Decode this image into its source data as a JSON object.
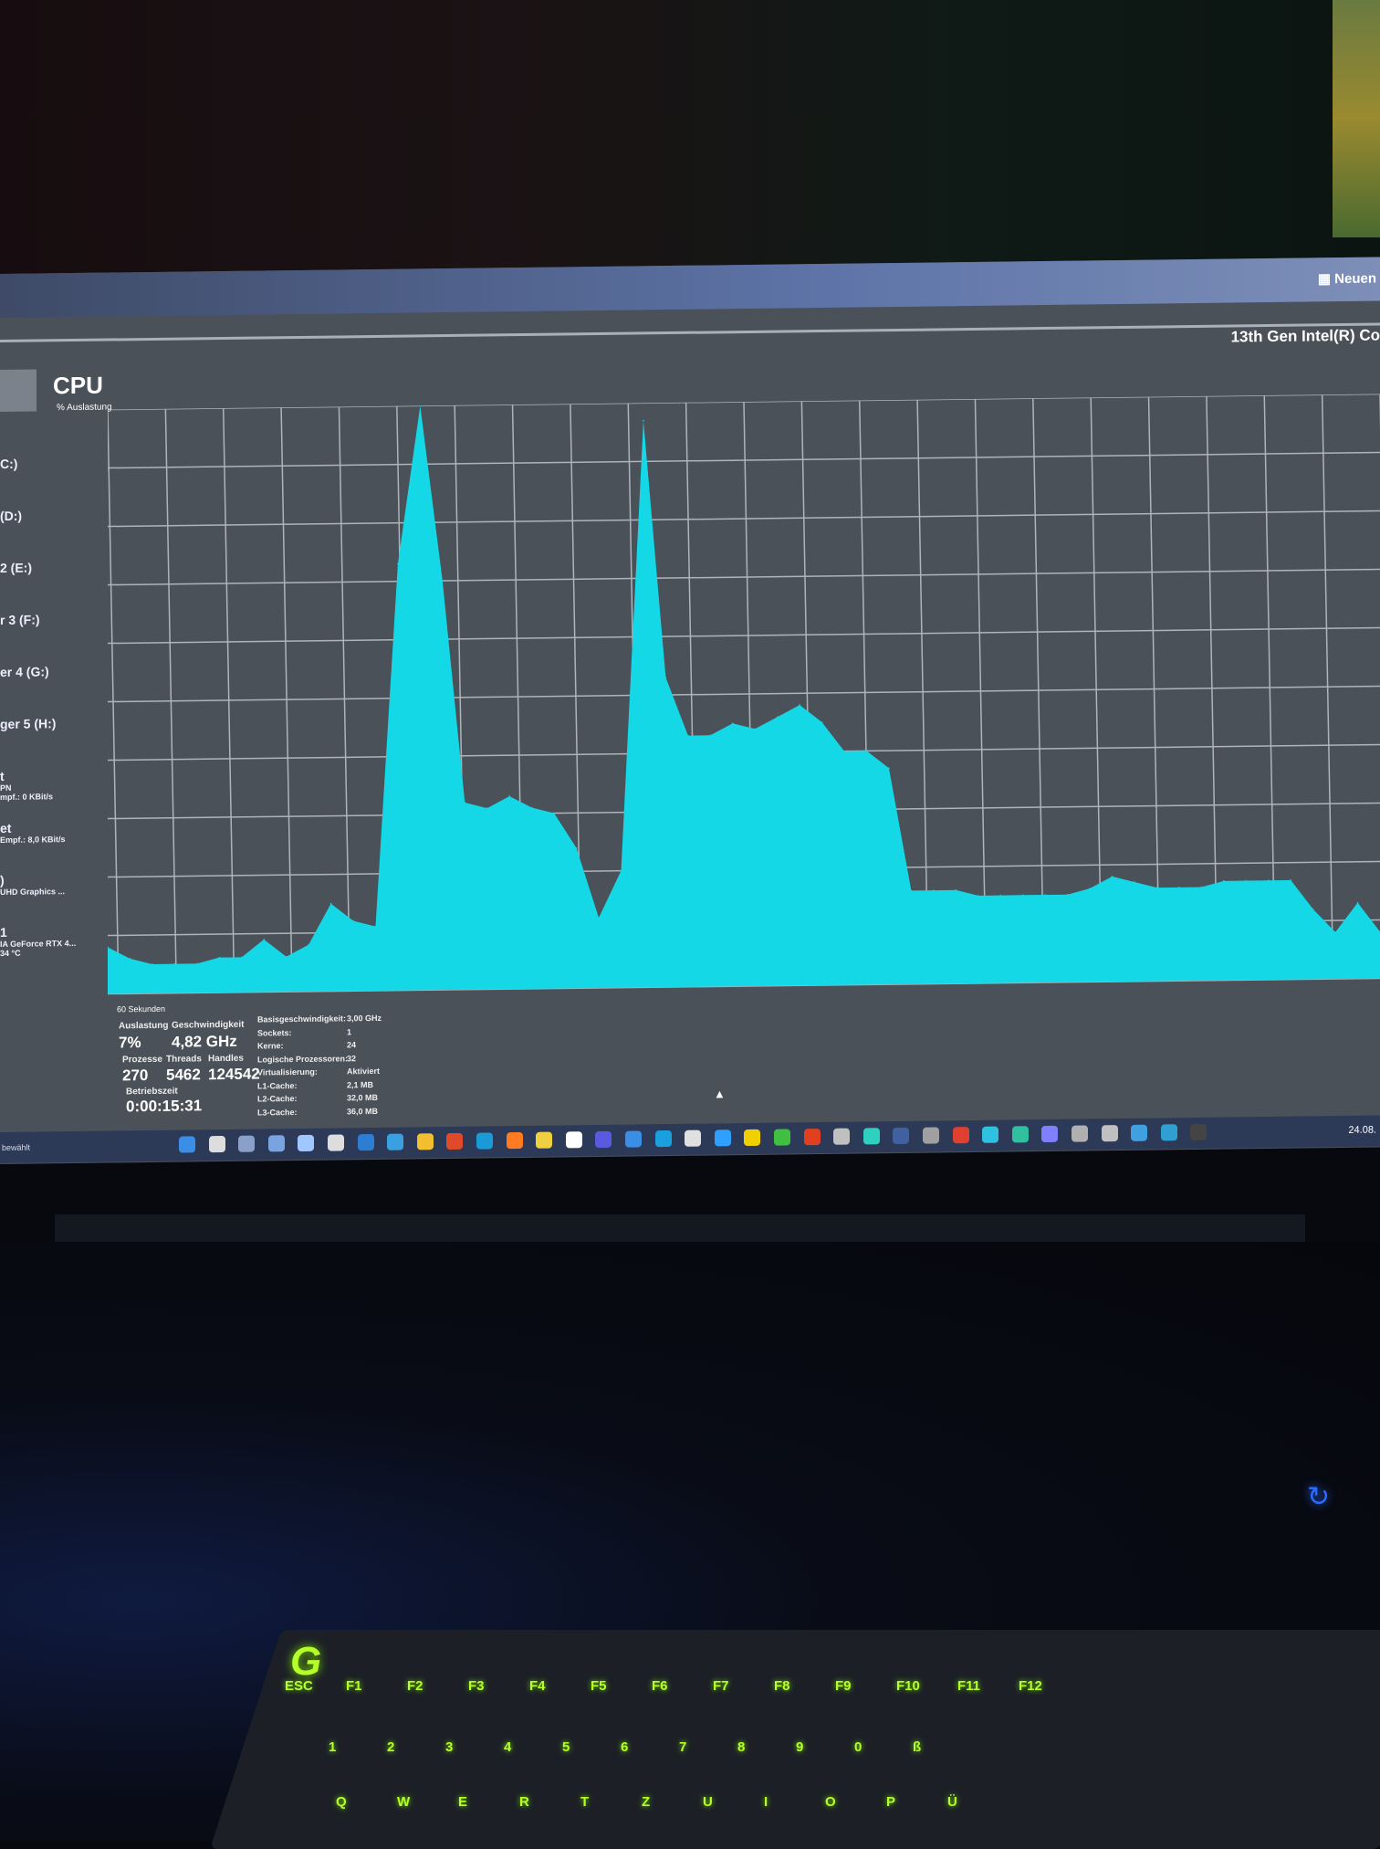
{
  "window": {
    "new_task_label": "Neuen",
    "cpu_model": "13th Gen Intel(R) Co",
    "title": "CPU",
    "subtitle": "% Auslastung",
    "time_window": "60 Sekunden",
    "status_left": "bewählt"
  },
  "sidebar": {
    "items": [
      {
        "label": "C:)",
        "sub": []
      },
      {
        "label": "(D:)",
        "sub": []
      },
      {
        "label": "2 (E:)",
        "sub": []
      },
      {
        "label": "r 3 (F:)",
        "sub": []
      },
      {
        "label": "er 4 (G:)",
        "sub": []
      },
      {
        "label": "ger 5 (H:)",
        "sub": []
      },
      {
        "label": "t",
        "sub": [
          "PN",
          "mpf.: 0 KBit/s"
        ]
      },
      {
        "label": "et",
        "sub": [
          "Empf.: 8,0 KBit/s"
        ]
      },
      {
        "label": ")",
        "sub": [
          "UHD Graphics ..."
        ]
      },
      {
        "label": "1",
        "sub": [
          "IA GeForce RTX 4...",
          "34 °C"
        ]
      }
    ]
  },
  "stats": {
    "utilization": {
      "label": "Auslastung",
      "value": "7%"
    },
    "speed": {
      "label": "Geschwindigkeit",
      "value": "4,82 GHz"
    },
    "processes": {
      "label": "Prozesse",
      "value": "270"
    },
    "threads": {
      "label": "Threads",
      "value": "5462"
    },
    "handles": {
      "label": "Handles",
      "value": "124542"
    },
    "uptime": {
      "label": "Betriebszeit",
      "value": "0:00:15:31"
    },
    "specs": [
      {
        "key": "Basisgeschwindigkeit:",
        "value": "3,00 GHz"
      },
      {
        "key": "Sockets:",
        "value": "1"
      },
      {
        "key": "Kerne:",
        "value": "24"
      },
      {
        "key": "Logische Prozessoren:",
        "value": "32"
      },
      {
        "key": "Virtualisierung:",
        "value": "Aktiviert"
      },
      {
        "key": "L1-Cache:",
        "value": "2,1 MB"
      },
      {
        "key": "L2-Cache:",
        "value": "32,0 MB"
      },
      {
        "key": "L3-Cache:",
        "value": "36,0 MB"
      }
    ]
  },
  "taskbar": {
    "clock": "24.08.",
    "icon_colors": [
      "#3a8ee6",
      "#dddddd",
      "#8aa0c8",
      "#7aa4e0",
      "#a0c8ff",
      "#dddddd",
      "#2d7dd2",
      "#3aa0e0",
      "#f0c030",
      "#e04a2a",
      "#1a9ad6",
      "#ff7a20",
      "#f0d040",
      "#ffffff",
      "#5a5ae0",
      "#3a8ee6",
      "#1aa0e0",
      "#e0e0e0",
      "#30a0ff",
      "#f0d000",
      "#40c040",
      "#e04020",
      "#c0c0c0",
      "#30d0c0",
      "#4060a0",
      "#a0a0a0",
      "#e04030",
      "#30c0e0",
      "#30c0a0",
      "#8080ff",
      "#b0b0b0",
      "#c0c0c0",
      "#40a0e0",
      "#30a0d0",
      "#444444"
    ]
  },
  "keyboard": {
    "brand_logo": "G",
    "fn_row": [
      "ESC",
      "F1",
      "F2",
      "F3",
      "F4",
      "F5",
      "F6",
      "F7",
      "F8",
      "F9",
      "F10",
      "F11",
      "F12"
    ],
    "number_row": [
      "1",
      "2",
      "3",
      "4",
      "5",
      "6",
      "7",
      "8",
      "9",
      "0",
      "ß"
    ],
    "letter_row": [
      "Q",
      "W",
      "E",
      "R",
      "T",
      "Z",
      "U",
      "I",
      "O",
      "P",
      "Ü"
    ],
    "accent": "#b4ff2a"
  },
  "chart_data": {
    "type": "area",
    "title": "CPU",
    "ylabel": "% Auslastung",
    "xlabel": "60 Sekunden",
    "ylim": [
      0,
      100
    ],
    "grid": true,
    "color": "#14d8e6",
    "values": [
      8,
      6,
      5,
      5,
      5,
      6,
      6,
      9,
      6,
      8,
      15,
      12,
      11,
      73,
      100,
      70,
      32,
      31,
      33,
      31,
      30,
      24,
      12,
      20,
      97,
      53,
      43,
      43,
      45,
      44,
      46,
      48,
      45,
      40,
      40,
      37,
      16,
      16,
      16,
      15,
      15,
      15,
      15,
      15,
      16,
      18,
      17,
      16,
      16,
      16,
      17,
      17,
      17,
      17,
      12,
      8,
      13,
      8
    ]
  }
}
